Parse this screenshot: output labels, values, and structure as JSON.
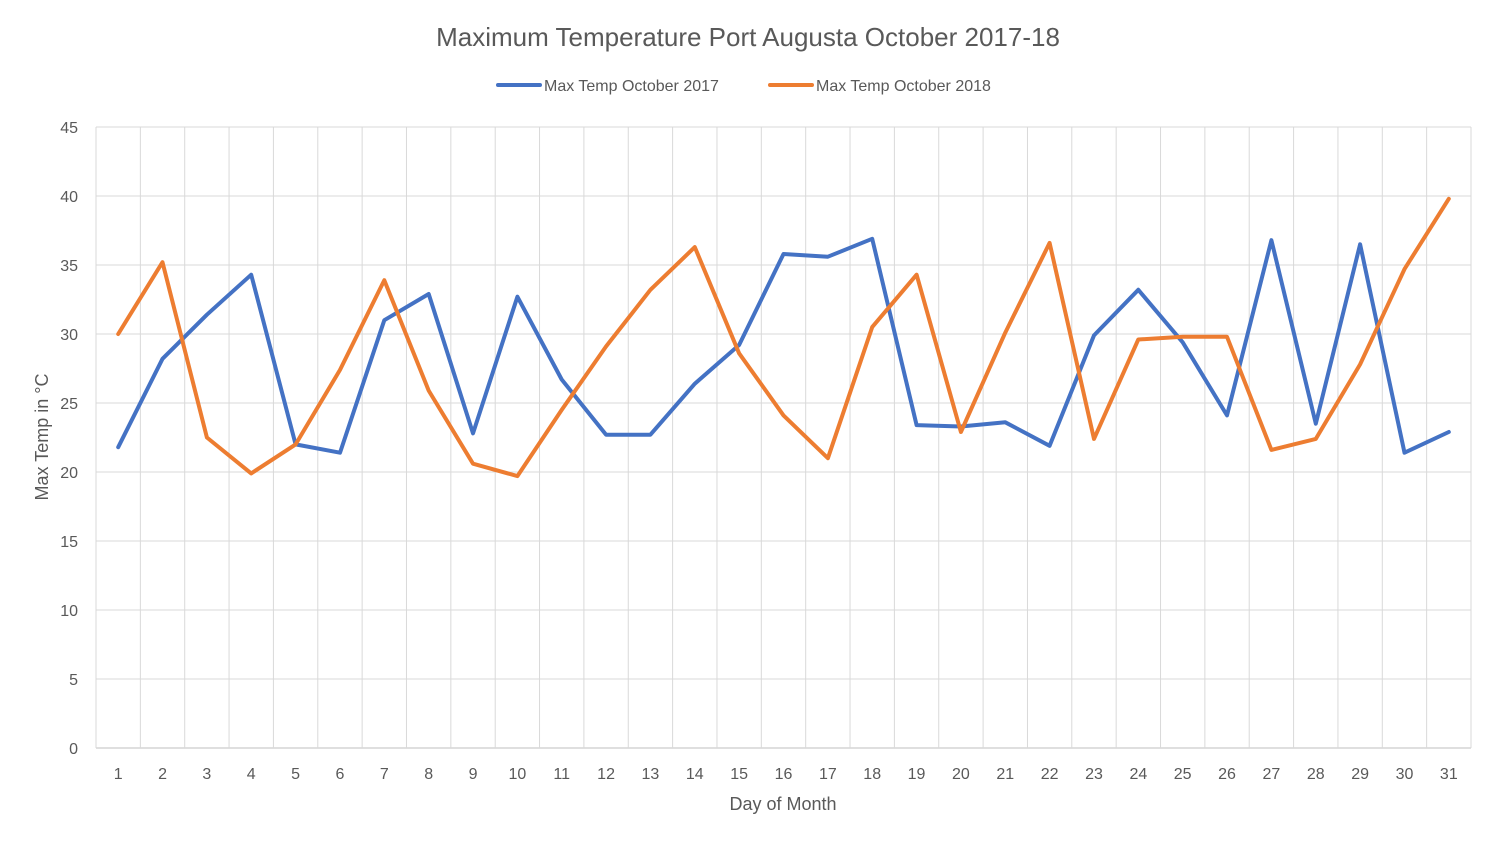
{
  "chart_data": {
    "type": "line",
    "title": "Maximum Temperature Port Augusta October 2017-18",
    "xlabel": "Day of Month",
    "ylabel": "Max Temp in °C",
    "ylim": [
      0,
      45
    ],
    "yticks": [
      0,
      5,
      10,
      15,
      20,
      25,
      30,
      35,
      40,
      45
    ],
    "grid": true,
    "legend_position": "top",
    "categories": [
      "1",
      "2",
      "3",
      "4",
      "5",
      "6",
      "7",
      "8",
      "9",
      "10",
      "11",
      "12",
      "13",
      "14",
      "15",
      "16",
      "17",
      "18",
      "19",
      "20",
      "21",
      "22",
      "23",
      "24",
      "25",
      "26",
      "27",
      "28",
      "29",
      "30",
      "31"
    ],
    "series": [
      {
        "name": "Max Temp October 2017",
        "color": "#4472c4",
        "values": [
          21.8,
          28.2,
          31.4,
          34.3,
          22.0,
          21.4,
          31.0,
          32.9,
          22.8,
          32.7,
          26.7,
          22.7,
          22.7,
          26.4,
          29.2,
          35.8,
          35.6,
          36.9,
          23.4,
          23.3,
          23.6,
          21.9,
          29.9,
          33.2,
          29.4,
          24.1,
          36.8,
          23.5,
          36.5,
          21.4,
          22.9
        ]
      },
      {
        "name": "Max Temp October 2018",
        "color": "#ed7d31",
        "values": [
          30.0,
          35.2,
          22.5,
          19.9,
          22.0,
          27.4,
          33.9,
          25.9,
          20.6,
          19.7,
          24.5,
          29.1,
          33.2,
          36.3,
          28.6,
          24.1,
          21.0,
          30.5,
          34.3,
          22.9,
          30.1,
          36.6,
          22.4,
          29.6,
          29.8,
          29.8,
          21.6,
          22.4,
          27.8,
          34.7,
          39.8
        ]
      }
    ]
  }
}
